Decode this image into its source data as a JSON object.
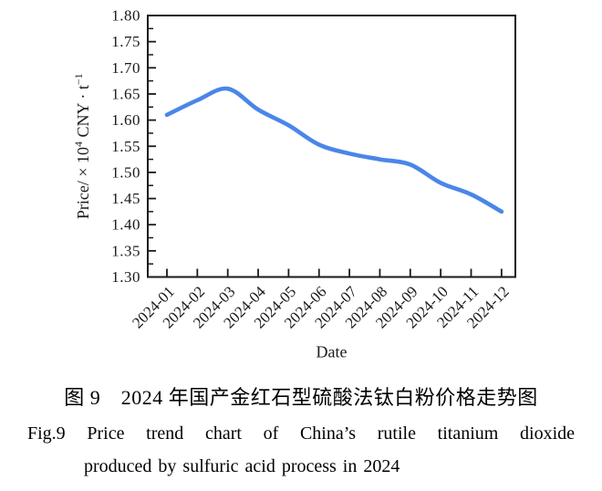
{
  "chart_data": {
    "type": "line",
    "title": "",
    "xlabel": "Date",
    "ylabel": "Price/ × 10⁴ CNY · t⁻¹",
    "ylabel_parts": {
      "pre": "Price/ × 10",
      "sup1": "4",
      "mid": " CNY · t",
      "sup2": "−1"
    },
    "categories": [
      "2024-01",
      "2024-02",
      "2024-03",
      "2024-04",
      "2024-05",
      "2024-06",
      "2024-07",
      "2024-08",
      "2024-09",
      "2024-10",
      "2024-11",
      "2024-12"
    ],
    "series": [
      {
        "name": "price",
        "values": [
          1.61,
          1.638,
          1.66,
          1.62,
          1.59,
          1.553,
          1.536,
          1.525,
          1.515,
          1.48,
          1.458,
          1.425
        ]
      }
    ],
    "ylim": [
      1.3,
      1.8
    ],
    "yticks": [
      "1.80",
      "1.75",
      "1.70",
      "1.65",
      "1.60",
      "1.55",
      "1.50",
      "1.45",
      "1.40",
      "1.35",
      "1.30"
    ],
    "y_minor_step": 0.025,
    "grid": false,
    "legend": "none",
    "line_color": "#4a86e8",
    "axis_color": "#1a1a1a",
    "text_color": "#1a1a1a"
  },
  "caption": {
    "chinese": "图 9　2024 年国产金红石型硫酸法钛白粉价格走势图",
    "english_line1": "Fig.9  Price trend chart of China’s rutile titanium dioxide",
    "english_line2": "produced by sulfuric acid process in 2024"
  }
}
